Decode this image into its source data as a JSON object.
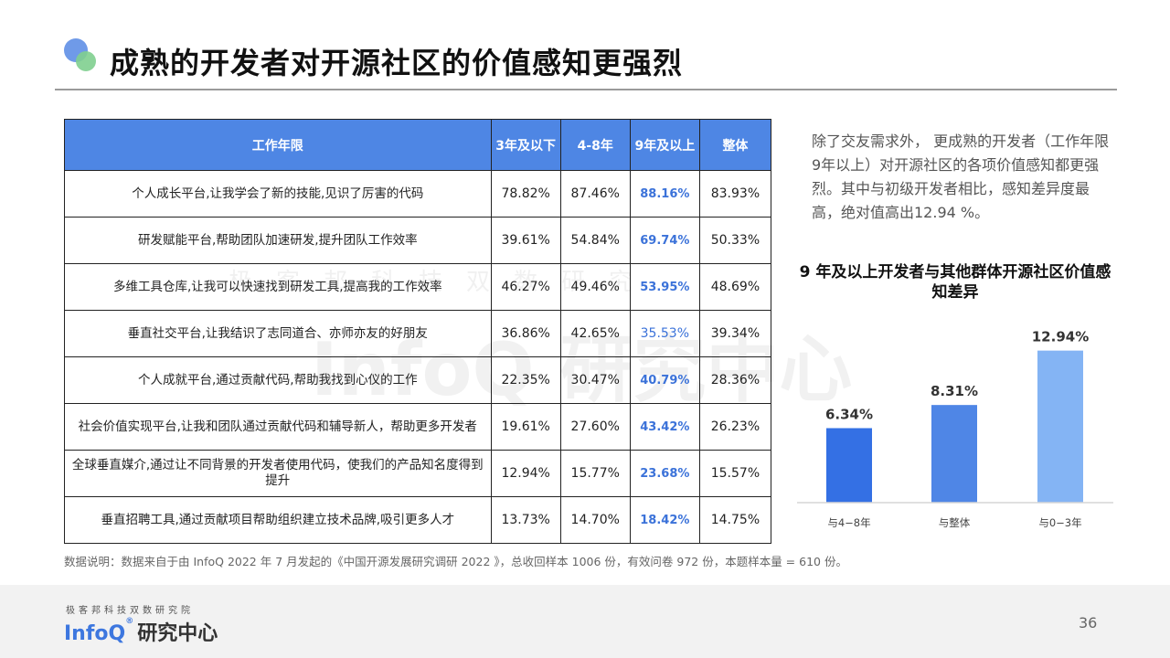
{
  "slide": {
    "title": "成熟的开发者对开源社区的价值感知更强烈",
    "page_number": "36"
  },
  "watermark": {
    "small": "极客邦科技双数研究",
    "big": "InfoQ 研究中心"
  },
  "table": {
    "headers": [
      "工作年限",
      "3年及以下",
      "4-8年",
      "9年及以上",
      "整体"
    ],
    "rows": [
      {
        "item": "个人成长平台,让我学会了新的技能,见识了厉害的代码",
        "c1": "78.82%",
        "c2": "87.46%",
        "c3": "88.16%",
        "c4": "83.93%"
      },
      {
        "item": "研发赋能平台,帮助团队加速研发,提升团队工作效率",
        "c1": "39.61%",
        "c2": "54.84%",
        "c3": "69.74%",
        "c4": "50.33%"
      },
      {
        "item": "多维工具仓库,让我可以快速找到研发工具,提高我的工作效率",
        "c1": "46.27%",
        "c2": "49.46%",
        "c3": "53.95%",
        "c4": "48.69%"
      },
      {
        "item": "垂直社交平台,让我结识了志同道合、亦师亦友的好朋友",
        "c1": "36.86%",
        "c2": "42.65%",
        "c3": "35.53%",
        "c4": "39.34%"
      },
      {
        "item": "个人成就平台,通过贡献代码,帮助我找到心仪的工作",
        "c1": "22.35%",
        "c2": "30.47%",
        "c3": "40.79%",
        "c4": "28.36%"
      },
      {
        "item": "社会价值实现平台,让我和团队通过贡献代码和辅导新人，帮助更多开发者",
        "c1": "19.61%",
        "c2": "27.60%",
        "c3": "43.42%",
        "c4": "26.23%"
      },
      {
        "item": "全球垂直媒介,通过让不同背景的开发者使用代码，使我们的产品知名度得到提升",
        "c1": "12.94%",
        "c2": "15.77%",
        "c3": "23.68%",
        "c4": "15.57%"
      },
      {
        "item": "垂直招聘工具,通过贡献项目帮助组织建立技术品牌,吸引更多人才",
        "c1": "13.73%",
        "c2": "14.70%",
        "c3": "18.42%",
        "c4": "14.75%"
      }
    ]
  },
  "description": "除了交友需求外， 更成熟的开发者（工作年限9年以上）对开源社区的各项价值感知都更强烈。其中与初级开发者相比，感知差异度最高，绝对值高出12.94 %。",
  "chart_data": {
    "type": "bar",
    "title": "9 年及以上开发者与其他群体开源社区价值感知差异",
    "categories": [
      "与4−8年",
      "与整体",
      "与0−3年"
    ],
    "values": [
      6.34,
      8.31,
      12.94
    ],
    "value_labels": [
      "6.34%",
      "8.31%",
      "12.94%"
    ],
    "colors": [
      "#3470e4",
      "#4f86e6",
      "#84b4f4"
    ],
    "ylim": [
      0,
      14
    ],
    "grid": false,
    "legend": "none"
  },
  "footnote": "数据说明：数据来自于由 InfoQ 2022 年 7 月发起的《中国开源发展研究调研 2022 》，总收回样本 1006 份，有效问卷 972 份，本题样本量 = 610 份。",
  "footer": {
    "subtitle": "极客邦科技双数研究院",
    "brand_info": "InfoQ",
    "brand_reg": "®",
    "brand_cn": "研究中心"
  },
  "colors": {
    "accent": "#4e86e4",
    "highlight_text": "#3b72d9"
  }
}
